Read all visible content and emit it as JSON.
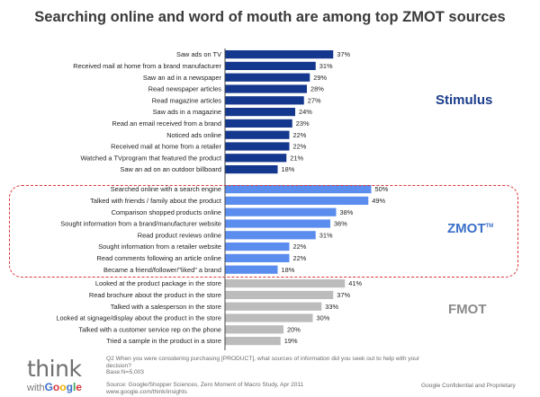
{
  "colors": {
    "stimulus_bar": "#14388e",
    "zmot_bar": "#5b8def",
    "fmot_bar": "#bcbcbc",
    "stimulus_label": "#1a3c8a",
    "zmot_label": "#3b6fc9",
    "fmot_label": "#8a8a8a",
    "zmot_box": "#d9343b"
  },
  "chart_data": {
    "type": "bar",
    "orientation": "horizontal",
    "title": "Searching online and word of mouth are among top ZMOT sources",
    "value_suffix": "%",
    "groups": [
      {
        "name": "Stimulus",
        "color": "#14388e",
        "categories": [
          "Saw ads on TV",
          "Received mail at home from a brand manufacturer",
          "Saw an ad in a newspaper",
          "Read newspaper articles",
          "Read magazine articles",
          "Saw ads in a magazine",
          "Read an email received from a brand",
          "Noticed ads online",
          "Received mail at home from a retailer",
          "Watched a TVprogram that featured the product",
          "Saw an ad on an outdoor billboard"
        ],
        "values": [
          37,
          31,
          29,
          28,
          27,
          24,
          23,
          22,
          22,
          21,
          18
        ]
      },
      {
        "name": "ZMOT",
        "color": "#5b8def",
        "categories": [
          "Searched online with a search engine",
          "Talked with friends / family about the product",
          "Comparison shopped products online",
          "Sought information from a brand/manufacturer website",
          "Read product reviews online",
          "Sought information from a retailer website",
          "Read comments following an article online",
          "Became a friend/follower/\"liked\" a brand"
        ],
        "values": [
          50,
          49,
          38,
          36,
          31,
          22,
          22,
          18
        ]
      },
      {
        "name": "FMOT",
        "color": "#bcbcbc",
        "categories": [
          "Looked at the product package in the store",
          "Read brochure about the product in the store",
          "Talked with a salesperson in the store",
          "Looked at signage/display about the product in the store",
          "Talked with a customer service rep on the phone",
          "Tried a sample in the product in a store"
        ],
        "values": [
          41,
          37,
          33,
          30,
          20,
          19
        ]
      }
    ]
  },
  "labels": {
    "stimulus": "Stimulus",
    "zmot": "ZMOT",
    "zmot_mark": "TM",
    "fmot": "FMOT"
  },
  "footer": {
    "logo_think": "think",
    "logo_with": "with",
    "logo_google": [
      "G",
      "o",
      "o",
      "g",
      "l",
      "e"
    ],
    "google_colors": [
      "#3b6fc9",
      "#d9343b",
      "#f2b200",
      "#3b6fc9",
      "#3aa757",
      "#d9343b"
    ],
    "question": "Q2 When you were considering purchasing [PRODUCT], what sources of information did you seek out to help with your decision?",
    "base": "Base:N=5,003",
    "source": "Source:  Google/Shopper Sciences, Zero Moment of Macro Study, Apr 2011",
    "url": "www.google.com/think/insights",
    "confidential": "Google Confidential and Proprietary"
  }
}
